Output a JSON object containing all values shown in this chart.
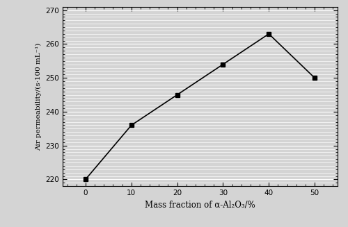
{
  "x_data": [
    0,
    10,
    20,
    30,
    40,
    50
  ],
  "y_data": [
    220,
    236,
    245,
    254,
    263,
    250
  ],
  "xlabel": "Mass fraction of α-Al₂O₃/%",
  "ylabel": "Air permeability/(s·100 mL⁻¹)",
  "xlim": [
    -5,
    55
  ],
  "ylim": [
    218,
    271
  ],
  "yticks": [
    220,
    230,
    240,
    250,
    260,
    270
  ],
  "xticks": [
    0,
    10,
    20,
    30,
    40,
    50
  ],
  "bg_color": "#d4d4d4",
  "plot_bg_color": "#d4d4d4",
  "line_color": "#000000",
  "marker_color": "#000000",
  "marker": "s",
  "marker_size": 4,
  "linewidth": 1.2,
  "minor_grid_color": "#b8b8b8",
  "major_grid_color": "#888888"
}
